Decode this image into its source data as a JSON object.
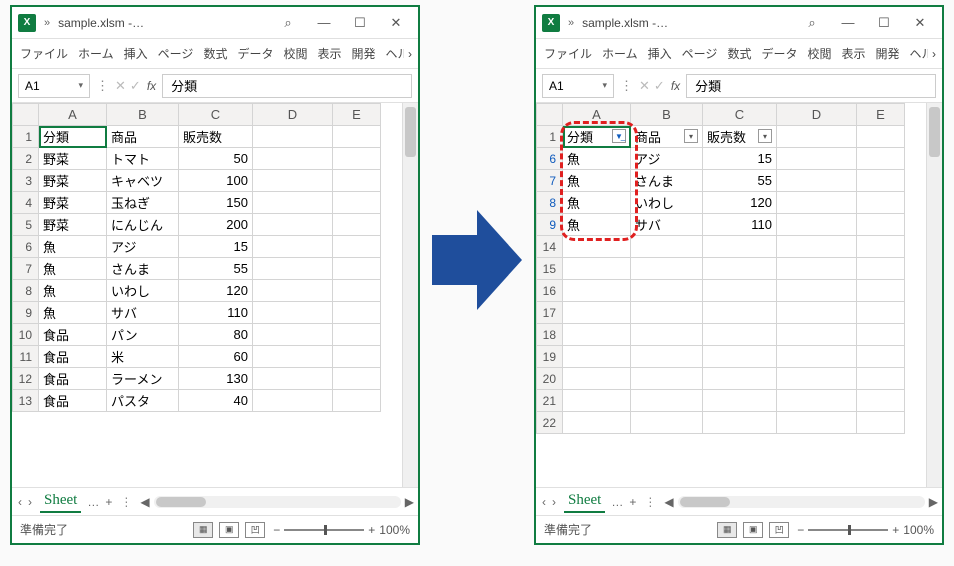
{
  "colors": {
    "accent": "#107c41",
    "highlight": "#e02020",
    "arrow": "#1f4e9c",
    "filtered_row_number": "#0f5bbd"
  },
  "title": "sample.xlsm -…",
  "ribbon": {
    "tabs": [
      "ファイル",
      "ホーム",
      "挿入",
      "ページ",
      "数式",
      "データ",
      "校閲",
      "表示",
      "開発",
      "ヘル"
    ],
    "more": "›"
  },
  "formula": {
    "cell_ref": "A1",
    "value": "分類"
  },
  "columns": [
    "A",
    "B",
    "C",
    "D",
    "E"
  ],
  "left": {
    "headers": [
      "分類",
      "商品",
      "販売数"
    ],
    "rows": [
      {
        "n": 1,
        "a": "分類",
        "b": "商品",
        "c": "販売数",
        "header": true
      },
      {
        "n": 2,
        "a": "野菜",
        "b": "トマト",
        "c": 50
      },
      {
        "n": 3,
        "a": "野菜",
        "b": "キャベツ",
        "c": 100
      },
      {
        "n": 4,
        "a": "野菜",
        "b": "玉ねぎ",
        "c": 150
      },
      {
        "n": 5,
        "a": "野菜",
        "b": "にんじん",
        "c": 200
      },
      {
        "n": 6,
        "a": "魚",
        "b": "アジ",
        "c": 15
      },
      {
        "n": 7,
        "a": "魚",
        "b": "さんま",
        "c": 55
      },
      {
        "n": 8,
        "a": "魚",
        "b": "いわし",
        "c": 120
      },
      {
        "n": 9,
        "a": "魚",
        "b": "サバ",
        "c": 110
      },
      {
        "n": 10,
        "a": "食品",
        "b": "パン",
        "c": 80
      },
      {
        "n": 11,
        "a": "食品",
        "b": "米",
        "c": 60
      },
      {
        "n": 12,
        "a": "食品",
        "b": "ラーメン",
        "c": 130
      },
      {
        "n": 13,
        "a": "食品",
        "b": "パスタ",
        "c": 40
      }
    ]
  },
  "right": {
    "filter_active_on": "A",
    "filter_icons": {
      "A": "funnel",
      "B": "dropdown",
      "C": "dropdown"
    },
    "rows": [
      {
        "n": 1,
        "a": "分類",
        "b": "商品",
        "c": "販売数",
        "header": true
      },
      {
        "n": 6,
        "a": "魚",
        "b": "アジ",
        "c": 15
      },
      {
        "n": 7,
        "a": "魚",
        "b": "さんま",
        "c": 55
      },
      {
        "n": 8,
        "a": "魚",
        "b": "いわし",
        "c": 120
      },
      {
        "n": 9,
        "a": "魚",
        "b": "サバ",
        "c": 110
      }
    ],
    "empty_rows": [
      14,
      15,
      16,
      17,
      18,
      19,
      20,
      21,
      22
    ]
  },
  "sheet_tab": {
    "name": "Sheet",
    "suffix": "…",
    "add": "+"
  },
  "status": {
    "ready": "準備完了",
    "zoom": "100%",
    "minus": "−",
    "plus": "+"
  },
  "win_btns": {
    "search": "⌕",
    "min": "—",
    "max": "☐",
    "close": "✕"
  }
}
